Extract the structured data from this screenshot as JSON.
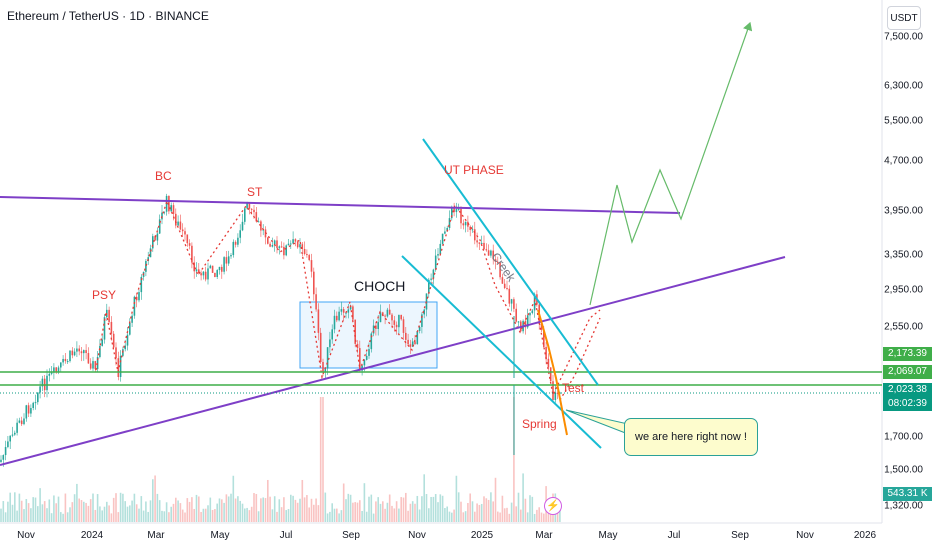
{
  "header": {
    "title": "Ethereum / TetherUS · 1D · BINANCE",
    "currency_button": "USDT"
  },
  "price_axis": {
    "ticks": [
      "7,500.00",
      "6,300.00",
      "5,500.00",
      "4,700.00",
      "3,950.00",
      "3,350.00",
      "2,950.00",
      "2,550.00",
      "1,700.00",
      "1,500.00",
      "1,320.00"
    ]
  },
  "time_axis": {
    "ticks": [
      "Nov",
      "2024",
      "Mar",
      "May",
      "Jul",
      "Sep",
      "Nov",
      "2025",
      "Mar",
      "May",
      "Jul",
      "Sep",
      "Nov",
      "2026"
    ]
  },
  "price_tags": {
    "upper_line": "2,173.39",
    "mid_line": "2,069.07",
    "last_price": "2,023.38",
    "countdown": "08:02:39",
    "volume": "543.31 K"
  },
  "annotations": {
    "psy": "PSY",
    "bc": "BC",
    "st": "ST",
    "choch": "CHOCH",
    "ut_phase": "UT PHASE",
    "creek": "Creek",
    "test": "Test",
    "spring": "Spring",
    "callout": "we are here right now !"
  },
  "colors": {
    "up": "#26a69a",
    "down": "#ef5350",
    "purple_line": "#7e3fc7",
    "green_line": "#3fae49",
    "cyan_line": "#18bcd3",
    "red_label": "#e53935",
    "projection": "#66bb6a",
    "last_price": "#089981"
  },
  "icons": {
    "flash": "lightning-icon"
  },
  "chart_data": {
    "type": "candlestick",
    "symbol": "ETH/USDT",
    "interval": "1D",
    "ylim": [
      1280,
      8000
    ],
    "y_scale": "log",
    "key_points": [
      {
        "label": "PSY",
        "date": "2024-01",
        "price": 2700
      },
      {
        "label": "BC",
        "date": "2024-03",
        "price": 4090
      },
      {
        "label": "ST",
        "date": "2024-05",
        "price": 3970
      },
      {
        "label": "UT PHASE",
        "date": "2024-12",
        "price": 4100
      },
      {
        "label": "Spring",
        "date": "2025-03",
        "price": 1800
      }
    ],
    "horizontal_levels": [
      2173.39,
      2069.07
    ],
    "last_price": 2023.38,
    "volume_last": "543.31 K",
    "projection_path": [
      2700,
      3650,
      3350,
      4300,
      3800,
      7700
    ]
  }
}
